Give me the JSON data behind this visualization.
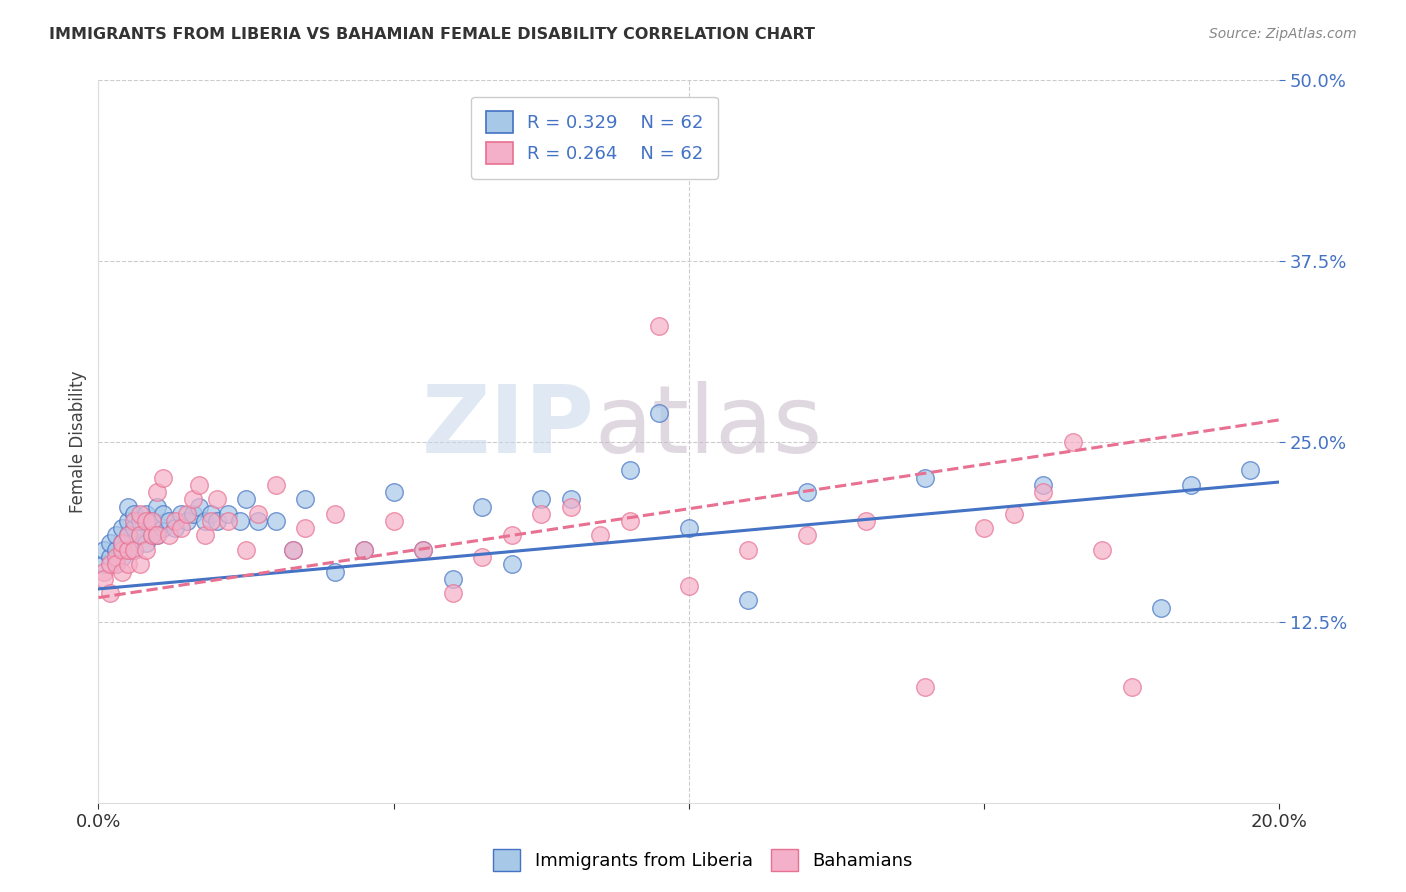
{
  "title": "IMMIGRANTS FROM LIBERIA VS BAHAMIAN FEMALE DISABILITY CORRELATION CHART",
  "source": "Source: ZipAtlas.com",
  "ylabel": "Female Disability",
  "legend_label1": "Immigrants from Liberia",
  "legend_label2": "Bahamians",
  "R1": 0.329,
  "N1": 62,
  "R2": 0.264,
  "N2": 62,
  "xmin": 0.0,
  "xmax": 0.2,
  "ymin": 0.0,
  "ymax": 0.5,
  "yticks": [
    0.125,
    0.25,
    0.375,
    0.5
  ],
  "ytick_labels": [
    "12.5%",
    "25.0%",
    "37.5%",
    "50.0%"
  ],
  "xticks": [
    0.0,
    0.05,
    0.1,
    0.15,
    0.2
  ],
  "xtick_labels": [
    "0.0%",
    "",
    "",
    "",
    "20.0%"
  ],
  "color_blue": "#a8c8e8",
  "color_pink": "#f4b0c8",
  "color_blue_line": "#4472c4",
  "color_pink_line": "#e87090",
  "background": "#ffffff",
  "watermark": "ZIPAtlas",
  "line1_x0": 0.0,
  "line1_y0": 0.148,
  "line1_x1": 0.2,
  "line1_y1": 0.222,
  "line2_x0": 0.0,
  "line2_y0": 0.142,
  "line2_x1": 0.2,
  "line2_y1": 0.265,
  "scatter1_x": [
    0.001,
    0.001,
    0.002,
    0.002,
    0.003,
    0.003,
    0.003,
    0.004,
    0.004,
    0.004,
    0.005,
    0.005,
    0.005,
    0.005,
    0.006,
    0.006,
    0.006,
    0.007,
    0.007,
    0.008,
    0.008,
    0.009,
    0.009,
    0.01,
    0.01,
    0.011,
    0.011,
    0.012,
    0.013,
    0.014,
    0.015,
    0.016,
    0.017,
    0.018,
    0.019,
    0.02,
    0.022,
    0.024,
    0.025,
    0.027,
    0.03,
    0.033,
    0.035,
    0.04,
    0.045,
    0.05,
    0.055,
    0.06,
    0.065,
    0.07,
    0.075,
    0.08,
    0.09,
    0.095,
    0.1,
    0.11,
    0.12,
    0.14,
    0.16,
    0.18,
    0.185,
    0.195
  ],
  "scatter1_y": [
    0.165,
    0.175,
    0.17,
    0.18,
    0.165,
    0.175,
    0.185,
    0.17,
    0.18,
    0.19,
    0.175,
    0.185,
    0.195,
    0.205,
    0.175,
    0.19,
    0.2,
    0.185,
    0.195,
    0.18,
    0.2,
    0.185,
    0.195,
    0.185,
    0.205,
    0.19,
    0.2,
    0.195,
    0.19,
    0.2,
    0.195,
    0.2,
    0.205,
    0.195,
    0.2,
    0.195,
    0.2,
    0.195,
    0.21,
    0.195,
    0.195,
    0.175,
    0.21,
    0.16,
    0.175,
    0.215,
    0.175,
    0.155,
    0.205,
    0.165,
    0.21,
    0.21,
    0.23,
    0.27,
    0.19,
    0.14,
    0.215,
    0.225,
    0.22,
    0.135,
    0.22,
    0.23
  ],
  "scatter2_x": [
    0.001,
    0.001,
    0.002,
    0.002,
    0.003,
    0.003,
    0.004,
    0.004,
    0.004,
    0.005,
    0.005,
    0.005,
    0.006,
    0.006,
    0.007,
    0.007,
    0.007,
    0.008,
    0.008,
    0.009,
    0.009,
    0.01,
    0.01,
    0.011,
    0.012,
    0.013,
    0.014,
    0.015,
    0.016,
    0.017,
    0.018,
    0.019,
    0.02,
    0.022,
    0.025,
    0.027,
    0.03,
    0.033,
    0.035,
    0.04,
    0.045,
    0.05,
    0.055,
    0.06,
    0.065,
    0.07,
    0.075,
    0.08,
    0.085,
    0.09,
    0.095,
    0.1,
    0.11,
    0.12,
    0.13,
    0.14,
    0.15,
    0.155,
    0.16,
    0.165,
    0.17,
    0.175
  ],
  "scatter2_y": [
    0.16,
    0.155,
    0.145,
    0.165,
    0.17,
    0.165,
    0.16,
    0.175,
    0.18,
    0.165,
    0.175,
    0.185,
    0.175,
    0.195,
    0.165,
    0.185,
    0.2,
    0.175,
    0.195,
    0.185,
    0.195,
    0.185,
    0.215,
    0.225,
    0.185,
    0.195,
    0.19,
    0.2,
    0.21,
    0.22,
    0.185,
    0.195,
    0.21,
    0.195,
    0.175,
    0.2,
    0.22,
    0.175,
    0.19,
    0.2,
    0.175,
    0.195,
    0.175,
    0.145,
    0.17,
    0.185,
    0.2,
    0.205,
    0.185,
    0.195,
    0.33,
    0.15,
    0.175,
    0.185,
    0.195,
    0.08,
    0.19,
    0.2,
    0.215,
    0.25,
    0.175,
    0.08
  ]
}
